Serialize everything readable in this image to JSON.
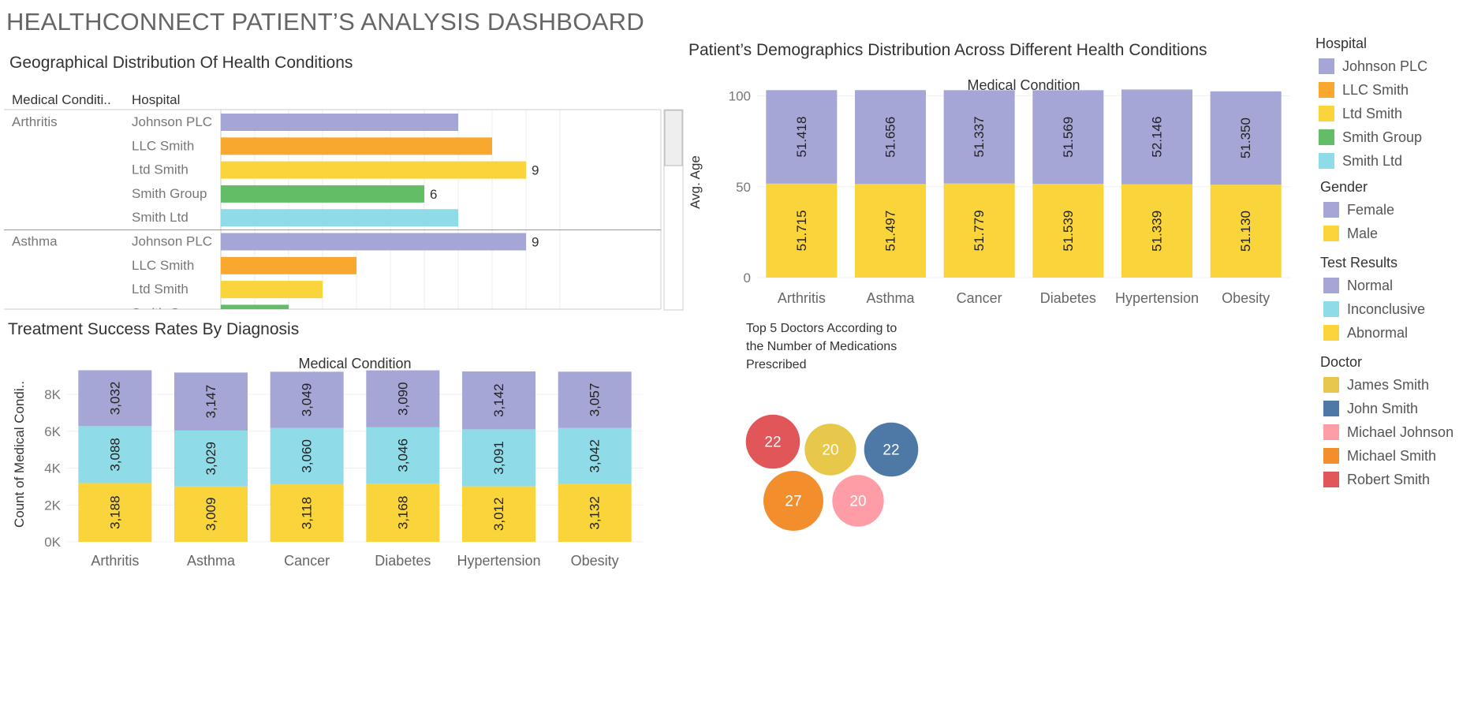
{
  "dashboard": {
    "title": "HEALTHCONNECT PATIENT’S ANALYSIS DASHBOARD"
  },
  "colors": {
    "Johnson PLC": "#a5a5d6",
    "LLC Smith": "#f9a82f",
    "Ltd Smith": "#f9d43b",
    "Smith Group": "#63bd67",
    "Smith Ltd": "#90dbe8",
    "Female": "#a5a5d6",
    "Male": "#f9d43b",
    "Normal": "#a5a5d6",
    "Inconclusive": "#90dbe8",
    "Abnormal": "#f9d43b",
    "James Smith": "#e8c84a",
    "John Smith": "#4e79a7",
    "Michael Johnson": "#ff9da7",
    "Michael Smith": "#f28e2b",
    "Robert Smith": "#e15759"
  },
  "legends": [
    {
      "title": "Hospital",
      "items": [
        "Johnson PLC",
        "LLC Smith",
        "Ltd Smith",
        "Smith Group",
        "Smith Ltd"
      ]
    },
    {
      "title": "Gender",
      "items": [
        "Female",
        "Male"
      ]
    },
    {
      "title": "Test Results",
      "items": [
        "Normal",
        "Inconclusive",
        "Abnormal"
      ]
    },
    {
      "title": "Doctor",
      "items": [
        "James Smith",
        "John Smith",
        "Michael Johnson",
        "Michael Smith",
        "Robert Smith"
      ]
    }
  ],
  "chart_data": [
    {
      "id": "geo",
      "type": "bar",
      "title": "Geographical Distribution Of Health Conditions",
      "orientation": "horizontal",
      "column_headers": [
        "Medical Conditi..",
        "Hospital"
      ],
      "xlim": [
        0,
        10
      ],
      "grid": true,
      "groups": [
        {
          "condition": "Arthritis",
          "rows": [
            {
              "hospital": "Johnson PLC",
              "value": 7
            },
            {
              "hospital": "LLC Smith",
              "value": 8
            },
            {
              "hospital": "Ltd Smith",
              "value": 9,
              "label": "9"
            },
            {
              "hospital": "Smith Group",
              "value": 6,
              "label": "6"
            },
            {
              "hospital": "Smith Ltd",
              "value": 7
            }
          ]
        },
        {
          "condition": "Asthma",
          "rows": [
            {
              "hospital": "Johnson PLC",
              "value": 9,
              "label": "9"
            },
            {
              "hospital": "LLC Smith",
              "value": 4
            },
            {
              "hospital": "Ltd Smith",
              "value": 3
            },
            {
              "hospital": "Smith Group",
              "value": 2
            }
          ]
        }
      ]
    },
    {
      "id": "demo",
      "type": "bar",
      "stacked": true,
      "title": "Patient’s Demographics Distribution Across Different Health Conditions",
      "header": "Medical Condition",
      "ylabel": "Avg. Age",
      "yticks": [
        0,
        50,
        100
      ],
      "ylim": [
        0,
        105
      ],
      "categories": [
        "Arthritis",
        "Asthma",
        "Cancer",
        "Diabetes",
        "Hypertension",
        "Obesity"
      ],
      "series": [
        {
          "name": "Male",
          "values": [
            51.715,
            51.497,
            51.779,
            51.539,
            51.339,
            51.13
          ],
          "labels": [
            "51.715",
            "51.497",
            "51.779",
            "51.539",
            "51.339",
            "51.130"
          ]
        },
        {
          "name": "Female",
          "values": [
            51.418,
            51.656,
            51.337,
            51.569,
            52.146,
            51.35
          ],
          "labels": [
            "51.418",
            "51.656",
            "51.337",
            "51.569",
            "52.146",
            "51.350"
          ]
        }
      ]
    },
    {
      "id": "treat",
      "type": "bar",
      "stacked": true,
      "title": "Treatment Success Rates By Diagnosis",
      "header": "Medical Condition",
      "ylabel": "Count of Medical Condi..",
      "yticks": [
        0,
        2000,
        4000,
        6000,
        8000
      ],
      "ytick_labels": [
        "0K",
        "2K",
        "4K",
        "6K",
        "8K"
      ],
      "ylim": [
        0,
        9500
      ],
      "categories": [
        "Arthritis",
        "Asthma",
        "Cancer",
        "Diabetes",
        "Hypertension",
        "Obesity"
      ],
      "series": [
        {
          "name": "Abnormal",
          "values": [
            3188,
            3009,
            3118,
            3168,
            3012,
            3132
          ],
          "labels": [
            "3,188",
            "3,009",
            "3,118",
            "3,168",
            "3,012",
            "3,132"
          ]
        },
        {
          "name": "Inconclusive",
          "values": [
            3088,
            3029,
            3060,
            3046,
            3091,
            3042
          ],
          "labels": [
            "3,088",
            "3,029",
            "3,060",
            "3,046",
            "3,091",
            "3,042"
          ]
        },
        {
          "name": "Normal",
          "values": [
            3032,
            3147,
            3049,
            3090,
            3142,
            3057
          ],
          "labels": [
            "3,032",
            "3,147",
            "3,049",
            "3,090",
            "3,142",
            "3,057"
          ]
        }
      ]
    },
    {
      "id": "doctors",
      "type": "bubble",
      "title": "Top 5 Doctors According to the Number of Medications Prescribed",
      "title_lines": [
        "Top 5 Doctors According to",
        "the Number of Medications",
        "Prescribed"
      ],
      "bubbles": [
        {
          "doctor": "Robert Smith",
          "value": 22,
          "label": "22"
        },
        {
          "doctor": "James Smith",
          "value": 20,
          "label": "20"
        },
        {
          "doctor": "John Smith",
          "value": 22,
          "label": "22"
        },
        {
          "doctor": "Michael Smith",
          "value": 27,
          "label": "27"
        },
        {
          "doctor": "Michael Johnson",
          "value": 20,
          "label": "20"
        }
      ]
    }
  ]
}
